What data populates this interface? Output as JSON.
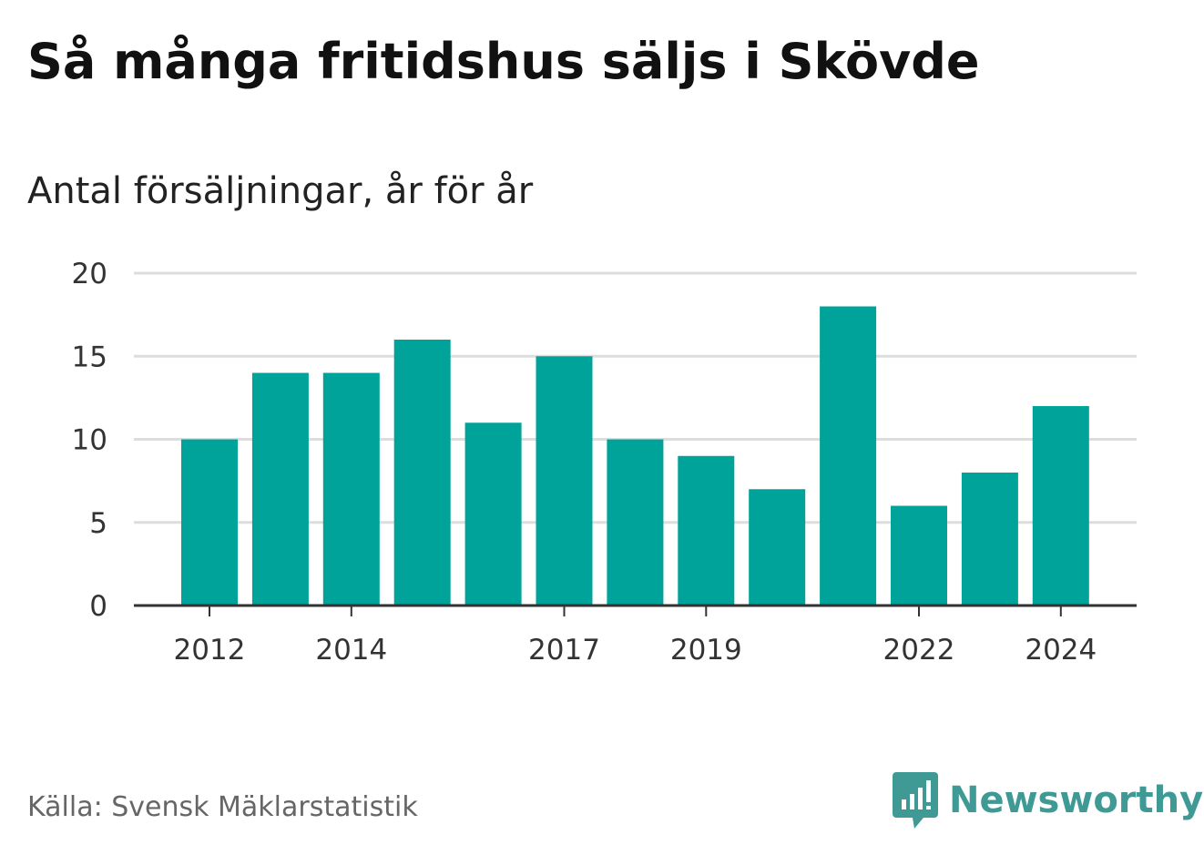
{
  "header": {
    "title": "Så många fritidshus säljs i Skövde",
    "subtitle": "Antal försäljningar, år för år"
  },
  "footer": {
    "source": "Källa: Svensk Mäklarstatistik",
    "brand_name": "Newsworthy",
    "brand_icon": "newsworthy-logo-icon"
  },
  "colors": {
    "bar": "#00a39a",
    "grid": "#dddddd",
    "axis": "#333333",
    "brand": "#3f9a96"
  },
  "chart_data": {
    "type": "bar",
    "categories": [
      "2012",
      "2013",
      "2014",
      "2015",
      "2016",
      "2017",
      "2018",
      "2019",
      "2020",
      "2021",
      "2022",
      "2023",
      "2024"
    ],
    "values": [
      10,
      14,
      14,
      16,
      11,
      15,
      10,
      9,
      7,
      18,
      6,
      8,
      12
    ],
    "x_tick_labels": [
      "2012",
      "2014",
      "2017",
      "2019",
      "2022",
      "2024"
    ],
    "y_ticks": [
      0,
      5,
      10,
      15,
      20
    ],
    "ylim": [
      0,
      20
    ],
    "grid": true,
    "legend": "none"
  }
}
